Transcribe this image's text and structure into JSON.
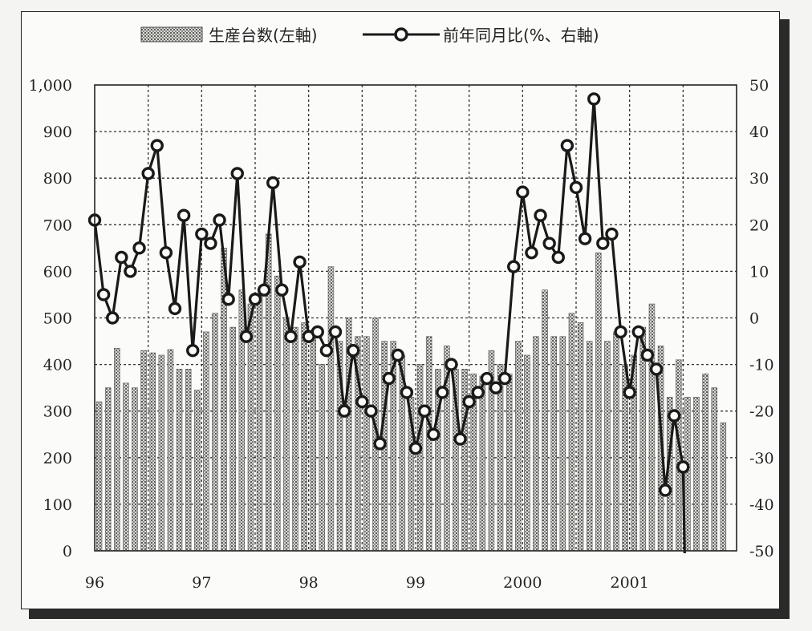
{
  "chart_data": {
    "type": "bar",
    "title": "",
    "legend": {
      "placement": "top-center",
      "bar_label": "生産台数(左軸)",
      "line_label": "前年同月比(%、右軸)"
    },
    "x_tick_labels": [
      "96",
      "97",
      "98",
      "99",
      "2000",
      "2001"
    ],
    "y_left": {
      "range": [
        0,
        1000
      ],
      "ticks": [
        "0",
        "100",
        "200",
        "300",
        "400",
        "500",
        "600",
        "700",
        "800",
        "900",
        "1,000"
      ]
    },
    "y_right": {
      "range": [
        -50,
        50
      ],
      "ticks": [
        "-50",
        "-40",
        "-30",
        "-20",
        "-10",
        "0",
        "10",
        "20",
        "30",
        "40",
        "50"
      ]
    },
    "grid": true,
    "months": [
      "1996-01",
      "1996-02",
      "1996-03",
      "1996-04",
      "1996-05",
      "1996-06",
      "1996-07",
      "1996-08",
      "1996-09",
      "1996-10",
      "1996-11",
      "1996-12",
      "1997-01",
      "1997-02",
      "1997-03",
      "1997-04",
      "1997-05",
      "1997-06",
      "1997-07",
      "1997-08",
      "1997-09",
      "1997-10",
      "1997-11",
      "1997-12",
      "1998-01",
      "1998-02",
      "1998-03",
      "1998-04",
      "1998-05",
      "1998-06",
      "1998-07",
      "1998-08",
      "1998-09",
      "1998-10",
      "1998-11",
      "1998-12",
      "1999-01",
      "1999-02",
      "1999-03",
      "1999-04",
      "1999-05",
      "1999-06",
      "1999-07",
      "1999-08",
      "1999-09",
      "1999-10",
      "1999-11",
      "1999-12",
      "2000-01",
      "2000-02",
      "2000-03",
      "2000-04",
      "2000-05",
      "2000-06",
      "2000-07",
      "2000-08",
      "2000-09",
      "2000-10",
      "2000-11",
      "2000-12",
      "2001-01",
      "2001-02",
      "2001-03",
      "2001-04",
      "2001-05",
      "2001-06",
      "2001-07",
      "2001-08",
      "2001-09",
      "2001-10",
      "2001-11",
      "2001-12"
    ],
    "series": [
      {
        "name": "生産台数(左軸)",
        "axis": "left",
        "values": [
          320,
          350,
          435,
          360,
          350,
          430,
          425,
          420,
          432,
          390,
          390,
          345,
          470,
          510,
          650,
          480,
          560,
          530,
          550,
          680,
          590,
          500,
          480,
          490,
          460,
          400,
          610,
          450,
          500,
          460,
          460,
          500,
          450,
          450,
          420,
          330,
          400,
          460,
          390,
          440,
          390,
          390,
          380,
          375,
          430,
          400,
          380,
          450,
          420,
          460,
          560,
          460,
          460,
          510,
          490,
          450,
          640,
          450,
          470,
          400,
          420,
          480,
          530,
          440,
          330,
          410,
          330,
          330,
          380,
          350,
          275,
          0
        ]
      },
      {
        "name": "前年同月比(%、右軸)",
        "axis": "right",
        "values": [
          21,
          5,
          0,
          13,
          10,
          15,
          31,
          37,
          14,
          2,
          22,
          -7,
          18,
          16,
          21,
          4,
          31,
          -4,
          4,
          6,
          29,
          6,
          -4,
          12,
          -4,
          -3,
          -7,
          -3,
          -20,
          -7,
          -18,
          -20,
          -27,
          -13,
          -8,
          -16,
          -28,
          -20,
          -25,
          -16,
          -10,
          -26,
          -18,
          -16,
          -13,
          -15,
          -13,
          11,
          27,
          14,
          22,
          16,
          13,
          37,
          28,
          17,
          47,
          16,
          18,
          -3,
          -16,
          -3,
          -8,
          -11,
          -37,
          -21,
          -32,
          null,
          null,
          null,
          null,
          null
        ]
      }
    ]
  }
}
